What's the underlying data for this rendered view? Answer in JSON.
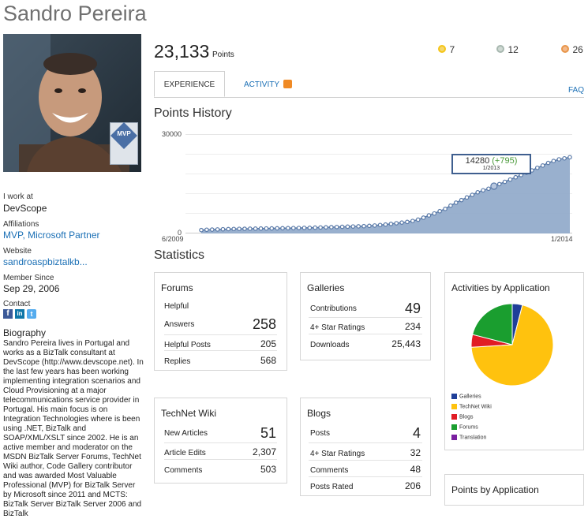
{
  "profile": {
    "name": "Sandro Pereira",
    "mvp_badge": "MVP",
    "work_label": "I work at",
    "work_value": "DevScope",
    "affiliations_label": "Affiliations",
    "affiliations_value": "MVP, Microsoft Partner",
    "website_label": "Website",
    "website_value": "sandroaspbiztalkb...",
    "member_since_label": "Member Since",
    "member_since_value": "Sep 29, 2006",
    "contact_label": "Contact",
    "biography_label": "Biography",
    "biography_text": "Sandro Pereira lives in Portugal and works as a BizTalk consultant at DevScope (http://www.devscope.net). In the last few years has been working implementing integration scenarios and Cloud Provisioning at a major telecommunications service provider in Portugal. His main focus is on Integration Technologies where is been using .NET, BizTalk and SOAP/XML/XSLT since 2002. He is an active member and moderator on the MSDN BizTalk Server Forums, TechNet Wiki author, Code Gallery contributor and was awarded Most Valuable Professional (MVP) for BizTalk Server by Microsoft since 2011 and MCTS: BizTalk Server BizTalk Server 2006 and BizTalk"
  },
  "points": {
    "value": "23,133",
    "label": "Points"
  },
  "medals": [
    {
      "name": "gold",
      "count": "7",
      "color": "#f5c518"
    },
    {
      "name": "silver",
      "count": "12",
      "color": "#a8b8b0"
    },
    {
      "name": "bronze",
      "count": "26",
      "color": "#e8964a"
    }
  ],
  "tabs": {
    "experience": "EXPERIENCE",
    "activity": "ACTIVITY",
    "faq": "FAQ"
  },
  "history": {
    "title": "Points History",
    "y_top_label": "30000",
    "y_zero_label": "0",
    "x_start_label": "6/2009",
    "x_end_label": "1/2014",
    "tooltip_value": "14280",
    "tooltip_delta": "(+795)",
    "tooltip_date": "1/2013"
  },
  "chart_data": {
    "type": "area",
    "ylim": [
      0,
      30000
    ],
    "values": [
      800,
      900,
      950,
      1000,
      1050,
      1100,
      1150,
      1180,
      1200,
      1220,
      1250,
      1280,
      1300,
      1320,
      1350,
      1380,
      1400,
      1420,
      1450,
      1480,
      1500,
      1550,
      1600,
      1650,
      1700,
      1750,
      1800,
      1850,
      1900,
      1950,
      2000,
      2100,
      2200,
      2350,
      2500,
      2700,
      2900,
      3100,
      3300,
      3600,
      4000,
      4600,
      5300,
      5900,
      6600,
      7300,
      8300,
      9200,
      10000,
      10800,
      11600,
      12400,
      13000,
      13485,
      14280,
      14900,
      15600,
      16300,
      17000,
      17700,
      18400,
      19100,
      19900,
      20600,
      21400,
      22000,
      22500,
      22800,
      23133
    ],
    "highlight_index": 54,
    "color": "#8ea7c9"
  },
  "statistics": {
    "title": "Statistics",
    "forums": {
      "title": "Forums",
      "helpful_label": "Helpful",
      "answers_label": "Answers",
      "answers_value": "258",
      "helpful_posts_label": "Helpful Posts",
      "helpful_posts_value": "205",
      "replies_label": "Replies",
      "replies_value": "568"
    },
    "galleries": {
      "title": "Galleries",
      "contributions_label": "Contributions",
      "contributions_value": "49",
      "star_label": "4+ Star Ratings",
      "star_value": "234",
      "downloads_label": "Downloads",
      "downloads_value": "25,443"
    },
    "wiki": {
      "title": "TechNet Wiki",
      "new_label": "New Articles",
      "new_value": "51",
      "edits_label": "Article Edits",
      "edits_value": "2,307",
      "comments_label": "Comments",
      "comments_value": "503"
    },
    "blogs": {
      "title": "Blogs",
      "posts_label": "Posts",
      "posts_value": "4",
      "star_label": "4+ Star Ratings",
      "star_value": "32",
      "comments_label": "Comments",
      "comments_value": "48",
      "rated_label": "Posts Rated",
      "rated_value": "206"
    }
  },
  "activities": {
    "title": "Activities by Application",
    "slices": [
      {
        "name": "Galleries",
        "value": 4,
        "color": "#1f3f99"
      },
      {
        "name": "TechNet Wiki",
        "value": 70,
        "color": "#ffc20e"
      },
      {
        "name": "Blogs",
        "value": 5,
        "color": "#e11c24"
      },
      {
        "name": "Forums",
        "value": 21,
        "color": "#1a9e2f"
      },
      {
        "name": "Translation",
        "value": 0,
        "color": "#7a1fa0"
      }
    ]
  },
  "points_by_app": {
    "title": "Points by Application"
  }
}
